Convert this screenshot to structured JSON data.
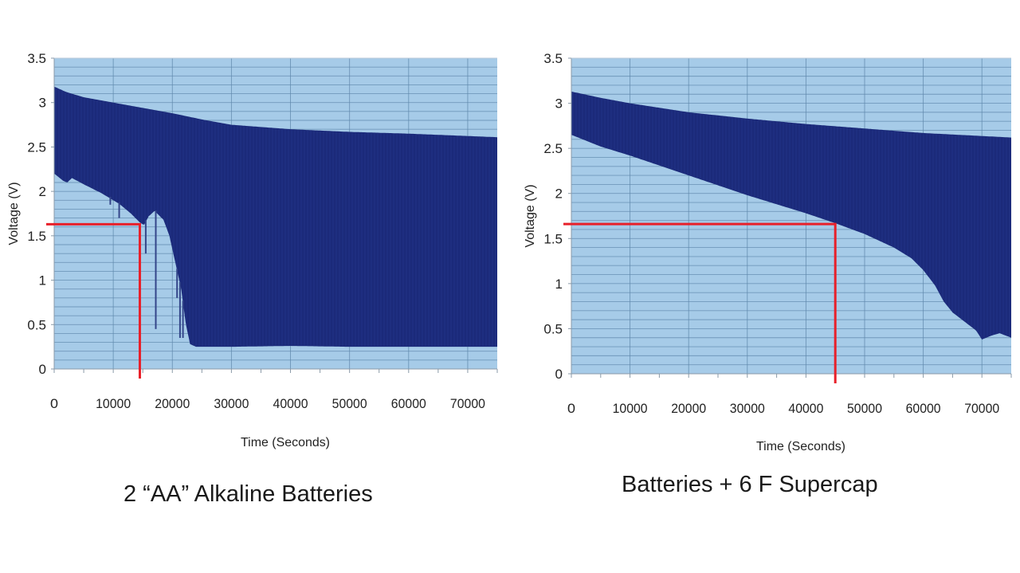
{
  "colors": {
    "plot_background": "#a6cbe8",
    "grid": "#5f88ac",
    "series_fill": "#1b2a7a",
    "marker": "#e8202a"
  },
  "chart_data": [
    {
      "type": "area",
      "title": "2 “AA” Alkaline Batteries",
      "xlabel": "Time (Seconds)",
      "ylabel": "Voltage (V)",
      "xlim": [
        0,
        75000
      ],
      "ylim": [
        0,
        3.5
      ],
      "grid": true,
      "x_ticks": [
        0,
        10000,
        20000,
        30000,
        40000,
        50000,
        60000,
        70000
      ],
      "y_ticks": [
        0,
        0.5,
        1,
        1.5,
        2,
        2.5,
        3,
        3.5
      ],
      "x_tick_labels": [
        "0",
        "10000",
        "20000",
        "30000",
        "40000",
        "50000",
        "60000",
        "70000"
      ],
      "y_tick_labels": [
        "0",
        "0.5",
        "1",
        "1.5",
        "2",
        "2.5",
        "3",
        "3.5"
      ],
      "series": [
        {
          "name": "upper envelope",
          "x": [
            0,
            2000,
            5000,
            10000,
            15000,
            20000,
            25000,
            30000,
            40000,
            50000,
            60000,
            75000
          ],
          "values": [
            3.18,
            3.12,
            3.06,
            3.0,
            2.94,
            2.88,
            2.81,
            2.75,
            2.7,
            2.67,
            2.65,
            2.61
          ]
        },
        {
          "name": "lower envelope",
          "x": [
            0,
            1500,
            2200,
            3000,
            5000,
            8000,
            11000,
            13000,
            14500,
            15200,
            16000,
            17000,
            18500,
            19500,
            20500,
            21500,
            22300,
            23000,
            24000,
            30000,
            40000,
            50000,
            60000,
            75000
          ],
          "values": [
            2.2,
            2.12,
            2.1,
            2.15,
            2.08,
            1.98,
            1.86,
            1.75,
            1.65,
            1.62,
            1.72,
            1.78,
            1.68,
            1.5,
            1.2,
            0.9,
            0.5,
            0.28,
            0.25,
            0.25,
            0.26,
            0.25,
            0.25,
            0.25
          ]
        }
      ],
      "spikes": [
        {
          "x": 9500,
          "value": 1.85
        },
        {
          "x": 11000,
          "value": 1.7
        },
        {
          "x": 15500,
          "value": 1.3
        },
        {
          "x": 17200,
          "value": 0.45
        },
        {
          "x": 20800,
          "value": 0.8
        },
        {
          "x": 21300,
          "value": 0.35
        },
        {
          "x": 21800,
          "value": 0.35
        }
      ],
      "annotation": {
        "voltage": 1.63,
        "time": 14500
      }
    },
    {
      "type": "area",
      "title": "Batteries  + 6 F Supercap",
      "xlabel": "Time (Seconds)",
      "ylabel": "Voltage (V)",
      "xlim": [
        0,
        75000
      ],
      "ylim": [
        0,
        3.5
      ],
      "grid": true,
      "x_ticks": [
        0,
        10000,
        20000,
        30000,
        40000,
        50000,
        60000,
        70000
      ],
      "y_ticks": [
        0,
        0.5,
        1,
        1.5,
        2,
        2.5,
        3,
        3.5
      ],
      "x_tick_labels": [
        "0",
        "10000",
        "20000",
        "30000",
        "40000",
        "50000",
        "60000",
        "70000"
      ],
      "y_tick_labels": [
        "0",
        "0.5",
        "1",
        "1.5",
        "2",
        "2.5",
        "3",
        "3.5"
      ],
      "series": [
        {
          "name": "upper envelope",
          "x": [
            0,
            5000,
            10000,
            20000,
            30000,
            40000,
            50000,
            60000,
            75000
          ],
          "values": [
            3.13,
            3.06,
            3.0,
            2.9,
            2.83,
            2.77,
            2.72,
            2.67,
            2.62
          ]
        },
        {
          "name": "lower envelope",
          "x": [
            0,
            5000,
            10000,
            20000,
            30000,
            40000,
            45000,
            50000,
            55000,
            58000,
            60000,
            62000,
            63500,
            65000,
            67000,
            69000,
            70000,
            71500,
            73000,
            75000
          ],
          "values": [
            2.65,
            2.52,
            2.42,
            2.2,
            1.98,
            1.78,
            1.67,
            1.55,
            1.4,
            1.28,
            1.15,
            0.98,
            0.8,
            0.68,
            0.58,
            0.48,
            0.38,
            0.42,
            0.45,
            0.4
          ]
        }
      ],
      "spikes": [],
      "annotation": {
        "voltage": 1.66,
        "time": 45000
      }
    }
  ]
}
